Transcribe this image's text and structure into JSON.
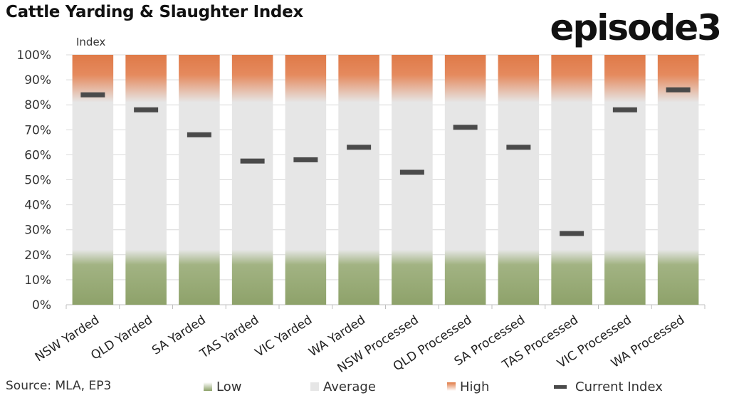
{
  "title": "Cattle Yarding & Slaughter Index",
  "logo": "episode3",
  "source": "Source: MLA, EP3",
  "colors": {
    "low": "#8ea26a",
    "average": "#e6e6e6",
    "high": "#e07a45",
    "current": "#4a4a4a"
  },
  "legend": {
    "low": "Low",
    "average": "Average",
    "high": "High",
    "current": "Current Index"
  },
  "chart_data": {
    "type": "bar",
    "ylabel": "Index",
    "xlabel": "",
    "ylim": [
      0,
      100
    ],
    "yticks": [
      "0%",
      "10%",
      "20%",
      "30%",
      "40%",
      "50%",
      "60%",
      "70%",
      "80%",
      "90%",
      "100%"
    ],
    "grid": true,
    "bands": [
      {
        "name": "Low",
        "from": 0,
        "to": 20
      },
      {
        "name": "Average",
        "from": 20,
        "to": 80
      },
      {
        "name": "High",
        "from": 80,
        "to": 100
      }
    ],
    "categories": [
      "NSW Yarded",
      "QLD Yarded",
      "SA Yarded",
      "TAS Yarded",
      "VIC Yarded",
      "WA Yarded",
      "NSW Processed",
      "QLD Processed",
      "SA Processed",
      "TAS Processed",
      "VIC Processed",
      "WA Processed"
    ],
    "series": [
      {
        "name": "Current Index",
        "values": [
          84,
          78,
          68,
          57.5,
          58,
          63,
          53,
          71,
          63,
          28.5,
          78,
          86
        ]
      }
    ]
  }
}
